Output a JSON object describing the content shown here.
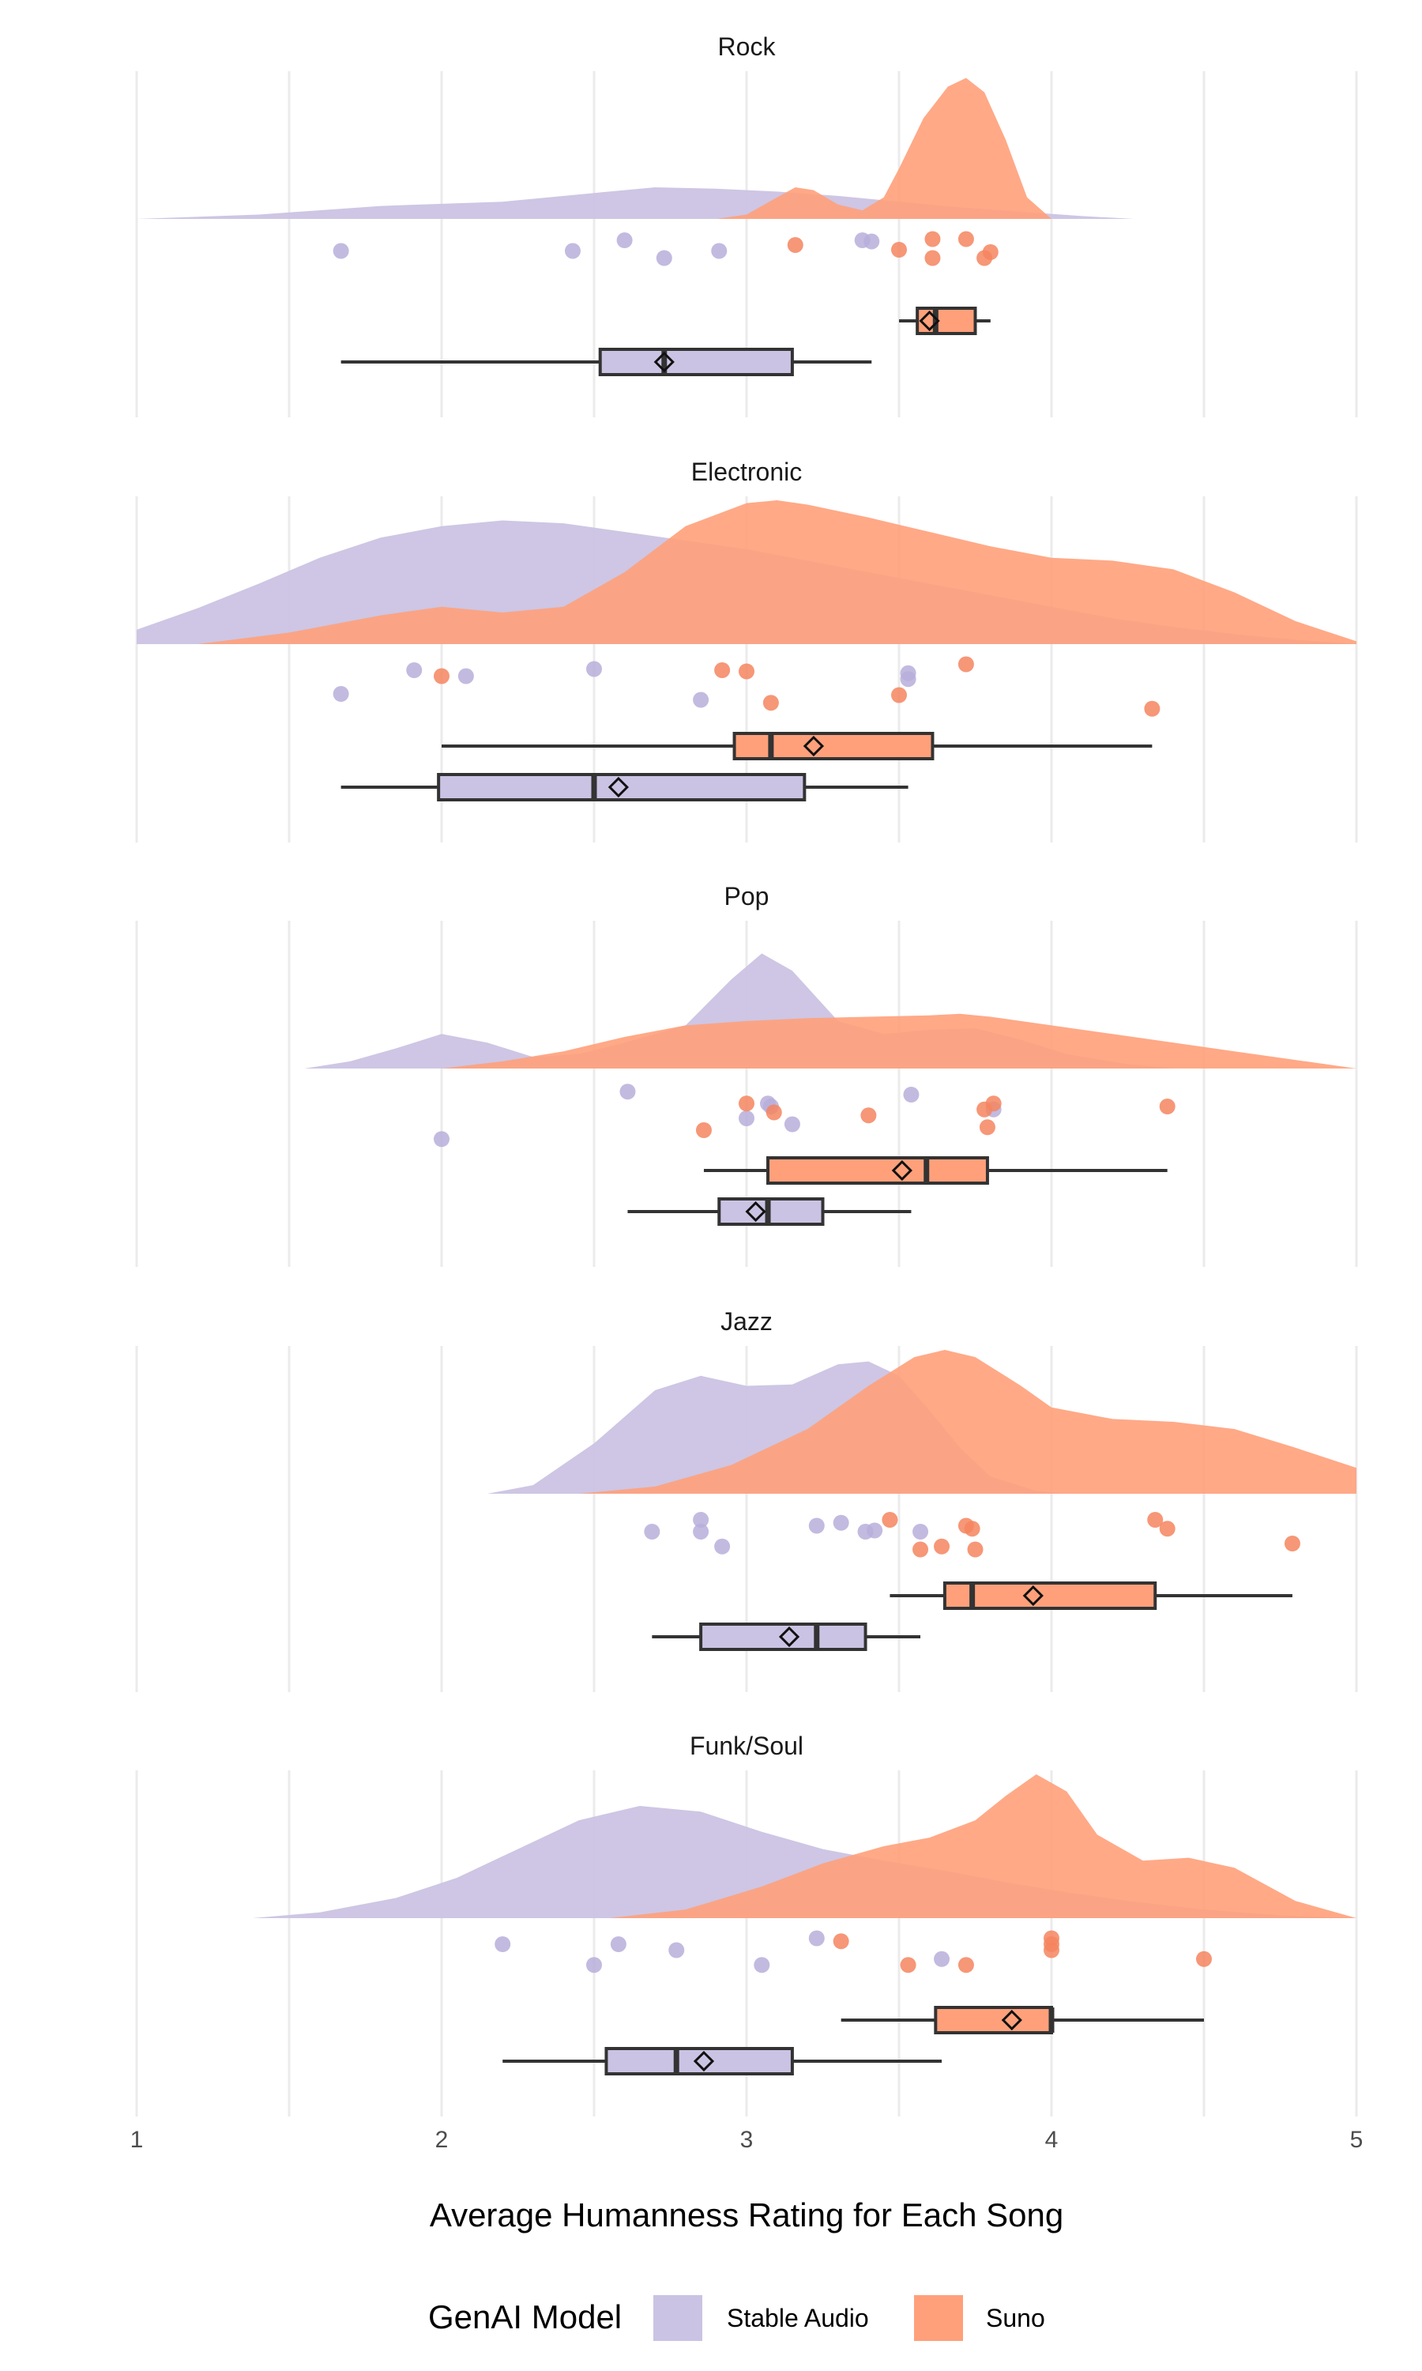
{
  "chart_data": {
    "type": "raincloud",
    "xlabel": "Average Humanness Rating for Each Song",
    "xlim": [
      1,
      5
    ],
    "xticks": [
      "1",
      "2",
      "3",
      "4",
      "5"
    ],
    "legend": {
      "title": "GenAI Model",
      "position": "bottom",
      "entries": [
        {
          "name": "Stable Audio",
          "color": "#cbc3e3"
        },
        {
          "name": "Suno",
          "color": "#ffa07a"
        }
      ]
    },
    "colors": {
      "Stable Audio": {
        "fill": "#cbc3e3",
        "point": "#b9aedb"
      },
      "Suno": {
        "fill": "#ffa07a",
        "point": "#f5855f"
      },
      "box_line": "#333333"
    },
    "facets": [
      {
        "title": "Rock",
        "series": [
          {
            "name": "Stable Audio",
            "density": {
              "x": [
                1.0,
                1.4,
                1.8,
                2.2,
                2.5,
                2.7,
                2.9,
                3.1,
                3.3,
                3.5,
                3.7,
                3.9,
                4.1,
                4.27
              ],
              "y": [
                0.0,
                0.03,
                0.09,
                0.12,
                0.18,
                0.22,
                0.21,
                0.19,
                0.16,
                0.12,
                0.08,
                0.05,
                0.02,
                0.0
              ]
            },
            "points": [
              [
                1.67,
                0.3
              ],
              [
                2.43,
                0.3
              ],
              [
                2.6,
                0.12
              ],
              [
                2.73,
                0.42
              ],
              [
                2.91,
                0.3
              ],
              [
                3.38,
                0.12
              ],
              [
                3.41,
                0.14
              ]
            ],
            "box": {
              "whisker_low": 1.67,
              "q1": 2.52,
              "median": 2.73,
              "q3": 3.15,
              "whisker_high": 3.41,
              "mean": 2.73
            }
          },
          {
            "name": "Suno",
            "density": {
              "x": [
                2.9,
                3.0,
                3.1,
                3.16,
                3.22,
                3.3,
                3.38,
                3.45,
                3.5,
                3.58,
                3.66,
                3.72,
                3.78,
                3.85,
                3.92,
                4.0
              ],
              "y": [
                0.0,
                0.03,
                0.15,
                0.22,
                0.2,
                0.1,
                0.06,
                0.15,
                0.35,
                0.7,
                0.92,
                0.98,
                0.88,
                0.55,
                0.15,
                0.0
              ]
            },
            "points": [
              [
                3.16,
                0.2
              ],
              [
                3.5,
                0.28
              ],
              [
                3.61,
                0.1
              ],
              [
                3.72,
                0.1
              ],
              [
                3.8,
                0.32
              ],
              [
                3.78,
                0.42
              ],
              [
                3.61,
                0.42
              ]
            ],
            "box": {
              "whisker_low": 3.5,
              "q1": 3.56,
              "median": 3.62,
              "q3": 3.75,
              "whisker_high": 3.8,
              "mean": 3.6
            }
          }
        ]
      },
      {
        "title": "Electronic",
        "series": [
          {
            "name": "Stable Audio",
            "density": {
              "x": [
                1.0,
                1.2,
                1.4,
                1.6,
                1.8,
                2.0,
                2.2,
                2.4,
                2.6,
                2.8,
                3.0,
                3.2,
                3.4,
                3.6,
                3.8,
                4.0,
                4.2,
                4.4,
                4.6,
                4.8,
                5.0
              ],
              "y": [
                0.1,
                0.25,
                0.42,
                0.6,
                0.74,
                0.82,
                0.86,
                0.84,
                0.78,
                0.72,
                0.66,
                0.58,
                0.5,
                0.42,
                0.34,
                0.26,
                0.18,
                0.12,
                0.07,
                0.03,
                0.0
              ]
            },
            "points": [
              [
                1.67,
                0.6
              ],
              [
                1.91,
                0.2
              ],
              [
                2.08,
                0.3
              ],
              [
                2.5,
                0.18
              ],
              [
                2.85,
                0.7
              ],
              [
                3.53,
                0.35
              ],
              [
                3.53,
                0.25
              ]
            ],
            "box": {
              "whisker_low": 1.67,
              "q1": 1.99,
              "median": 2.5,
              "q3": 3.19,
              "whisker_high": 3.53,
              "mean": 2.58
            }
          },
          {
            "name": "Suno",
            "density": {
              "x": [
                1.2,
                1.5,
                1.8,
                2.0,
                2.2,
                2.4,
                2.6,
                2.8,
                3.0,
                3.1,
                3.2,
                3.4,
                3.6,
                3.8,
                4.0,
                4.2,
                4.4,
                4.6,
                4.8,
                5.0
              ],
              "y": [
                0.0,
                0.08,
                0.2,
                0.26,
                0.22,
                0.26,
                0.5,
                0.82,
                0.98,
                1.0,
                0.97,
                0.88,
                0.78,
                0.68,
                0.6,
                0.58,
                0.52,
                0.36,
                0.16,
                0.02
              ]
            },
            "points": [
              [
                2.0,
                0.3
              ],
              [
                2.92,
                0.2
              ],
              [
                3.0,
                0.22
              ],
              [
                3.08,
                0.75
              ],
              [
                3.5,
                0.62
              ],
              [
                3.72,
                0.1
              ],
              [
                4.33,
                0.85
              ]
            ],
            "box": {
              "whisker_low": 2.0,
              "q1": 2.96,
              "median": 3.08,
              "q3": 3.61,
              "whisker_high": 4.33,
              "mean": 3.22
            }
          }
        ]
      },
      {
        "title": "Pop",
        "series": [
          {
            "name": "Stable Audio",
            "density": {
              "x": [
                1.55,
                1.7,
                1.85,
                2.0,
                2.15,
                2.3,
                2.45,
                2.6,
                2.8,
                2.95,
                3.05,
                3.15,
                3.3,
                3.45,
                3.6,
                3.75,
                3.9,
                4.05,
                4.25,
                4.4
              ],
              "y": [
                0.0,
                0.05,
                0.14,
                0.24,
                0.18,
                0.08,
                0.1,
                0.18,
                0.3,
                0.62,
                0.8,
                0.68,
                0.33,
                0.24,
                0.27,
                0.28,
                0.2,
                0.1,
                0.03,
                0.0
              ]
            },
            "points": [
              [
                2.0,
                0.95
              ],
              [
                2.61,
                0.15
              ],
              [
                3.0,
                0.6
              ],
              [
                3.07,
                0.35
              ],
              [
                3.08,
                0.4
              ],
              [
                3.15,
                0.7
              ],
              [
                3.54,
                0.2
              ],
              [
                3.81,
                0.45
              ]
            ],
            "box": {
              "whisker_low": 2.61,
              "q1": 2.91,
              "median": 3.07,
              "q3": 3.25,
              "whisker_high": 3.54,
              "mean": 3.03
            }
          },
          {
            "name": "Suno",
            "density": {
              "x": [
                2.0,
                2.2,
                2.4,
                2.6,
                2.8,
                3.0,
                3.2,
                3.4,
                3.6,
                3.7,
                3.8,
                4.0,
                4.2,
                4.4,
                4.6,
                4.8,
                5.0
              ],
              "y": [
                0.0,
                0.05,
                0.12,
                0.22,
                0.3,
                0.33,
                0.35,
                0.36,
                0.37,
                0.38,
                0.36,
                0.3,
                0.24,
                0.18,
                0.12,
                0.06,
                0.0
              ]
            },
            "points": [
              [
                2.86,
                0.8
              ],
              [
                3.0,
                0.35
              ],
              [
                3.09,
                0.5
              ],
              [
                3.4,
                0.55
              ],
              [
                3.78,
                0.45
              ],
              [
                3.81,
                0.35
              ],
              [
                3.79,
                0.75
              ],
              [
                4.38,
                0.4
              ]
            ],
            "box": {
              "whisker_low": 2.86,
              "q1": 3.07,
              "median": 3.59,
              "q3": 3.79,
              "whisker_high": 4.38,
              "mean": 3.51
            }
          }
        ]
      },
      {
        "title": "Jazz",
        "series": [
          {
            "name": "Stable Audio",
            "density": {
              "x": [
                2.15,
                2.3,
                2.5,
                2.7,
                2.85,
                3.0,
                3.15,
                3.3,
                3.4,
                3.5,
                3.6,
                3.7,
                3.8,
                3.95,
                4.05
              ],
              "y": [
                0.0,
                0.06,
                0.35,
                0.72,
                0.82,
                0.75,
                0.76,
                0.9,
                0.92,
                0.82,
                0.58,
                0.32,
                0.12,
                0.02,
                0.0
              ]
            },
            "points": [
              [
                2.69,
                0.4
              ],
              [
                2.85,
                0.2
              ],
              [
                2.85,
                0.4
              ],
              [
                2.92,
                0.65
              ],
              [
                3.23,
                0.3
              ],
              [
                3.31,
                0.25
              ],
              [
                3.39,
                0.4
              ],
              [
                3.42,
                0.38
              ],
              [
                3.57,
                0.4
              ]
            ],
            "box": {
              "whisker_low": 2.69,
              "q1": 2.85,
              "median": 3.23,
              "q3": 3.39,
              "whisker_high": 3.57,
              "mean": 3.14
            }
          },
          {
            "name": "Suno",
            "density": {
              "x": [
                2.45,
                2.7,
                2.95,
                3.2,
                3.4,
                3.55,
                3.65,
                3.75,
                3.9,
                4.0,
                4.2,
                4.4,
                4.6,
                4.8,
                5.0
              ],
              "y": [
                0.0,
                0.05,
                0.2,
                0.45,
                0.75,
                0.95,
                1.0,
                0.95,
                0.75,
                0.6,
                0.52,
                0.5,
                0.45,
                0.32,
                0.18
              ]
            },
            "points": [
              [
                3.47,
                0.2
              ],
              [
                3.57,
                0.7
              ],
              [
                3.64,
                0.65
              ],
              [
                3.72,
                0.3
              ],
              [
                3.74,
                0.35
              ],
              [
                3.75,
                0.7
              ],
              [
                4.34,
                0.2
              ],
              [
                4.38,
                0.35
              ],
              [
                4.79,
                0.6
              ]
            ],
            "box": {
              "whisker_low": 3.47,
              "q1": 3.65,
              "median": 3.74,
              "q3": 4.34,
              "whisker_high": 4.79,
              "mean": 3.94
            }
          }
        ]
      },
      {
        "title": "Funk/Soul",
        "series": [
          {
            "name": "Stable Audio",
            "density": {
              "x": [
                1.38,
                1.6,
                1.85,
                2.05,
                2.25,
                2.45,
                2.65,
                2.85,
                3.05,
                3.25,
                3.45,
                3.65,
                3.85,
                4.05,
                4.25,
                4.5,
                4.75,
                5.0
              ],
              "y": [
                0.0,
                0.04,
                0.14,
                0.28,
                0.48,
                0.68,
                0.78,
                0.74,
                0.6,
                0.48,
                0.4,
                0.33,
                0.25,
                0.18,
                0.12,
                0.06,
                0.02,
                0.0
              ]
            },
            "points": [
              [
                2.2,
                0.2
              ],
              [
                2.5,
                0.55
              ],
              [
                2.58,
                0.2
              ],
              [
                2.77,
                0.3
              ],
              [
                3.05,
                0.55
              ],
              [
                3.23,
                0.1
              ],
              [
                3.64,
                0.45
              ]
            ],
            "box": {
              "whisker_low": 2.2,
              "q1": 2.54,
              "median": 2.77,
              "q3": 3.15,
              "whisker_high": 3.64,
              "mean": 2.86
            }
          },
          {
            "name": "Suno",
            "density": {
              "x": [
                2.55,
                2.8,
                3.05,
                3.25,
                3.45,
                3.6,
                3.75,
                3.85,
                3.95,
                4.05,
                4.15,
                4.3,
                4.45,
                4.6,
                4.8,
                5.0
              ],
              "y": [
                0.0,
                0.06,
                0.22,
                0.38,
                0.5,
                0.56,
                0.68,
                0.85,
                1.0,
                0.88,
                0.58,
                0.4,
                0.42,
                0.35,
                0.12,
                0.0
              ]
            },
            "points": [
              [
                3.31,
                0.15
              ],
              [
                3.53,
                0.55
              ],
              [
                3.72,
                0.55
              ],
              [
                4.0,
                0.1
              ],
              [
                4.0,
                0.2
              ],
              [
                4.0,
                0.3
              ],
              [
                4.5,
                0.45
              ]
            ],
            "box": {
              "whisker_low": 3.31,
              "q1": 3.62,
              "median": 4.0,
              "q3": 4.0,
              "whisker_high": 4.5,
              "mean": 3.87
            }
          }
        ]
      }
    ]
  }
}
